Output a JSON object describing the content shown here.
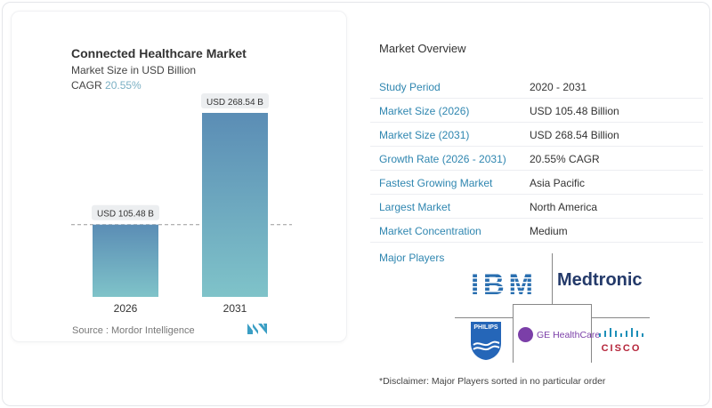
{
  "chart_data": {
    "type": "bar",
    "title": "Connected Healthcare Market",
    "subtitle": "Market Size in USD Billion",
    "cagr_label": "CAGR",
    "cagr_value": "20.55%",
    "categories": [
      "2026",
      "2031"
    ],
    "values": [
      105.48,
      268.54
    ],
    "data_labels": [
      "USD 105.48 B",
      "USD 268.54 B"
    ],
    "reference_line": "dashed at 2026 value",
    "colors": {
      "top": "#5b8db5",
      "bottom": "#7fc3c9"
    },
    "source": "Source :  Mordor Intelligence"
  },
  "overview": {
    "title": "Market Overview",
    "rows": [
      {
        "label": "Study Period",
        "value": "2020 - 2031"
      },
      {
        "label": "Market Size (2026)",
        "value": "USD 105.48 Billion"
      },
      {
        "label": "Market Size (2031)",
        "value": "USD 268.54 Billion"
      },
      {
        "label": "Growth Rate (2026 - 2031)",
        "value": "20.55% CAGR"
      },
      {
        "label": "Fastest Growing Market",
        "value": "Asia Pacific"
      },
      {
        "label": "Largest Market",
        "value": "North America"
      },
      {
        "label": "Market Concentration",
        "value": "Medium"
      }
    ],
    "major_players_title": "Major Players",
    "players": [
      "IBM",
      "Medtronic",
      "PHILIPS",
      "GE HealthCare",
      "CISCO"
    ],
    "disclaimer": "*Disclaimer: Major Players sorted in no particular order"
  }
}
